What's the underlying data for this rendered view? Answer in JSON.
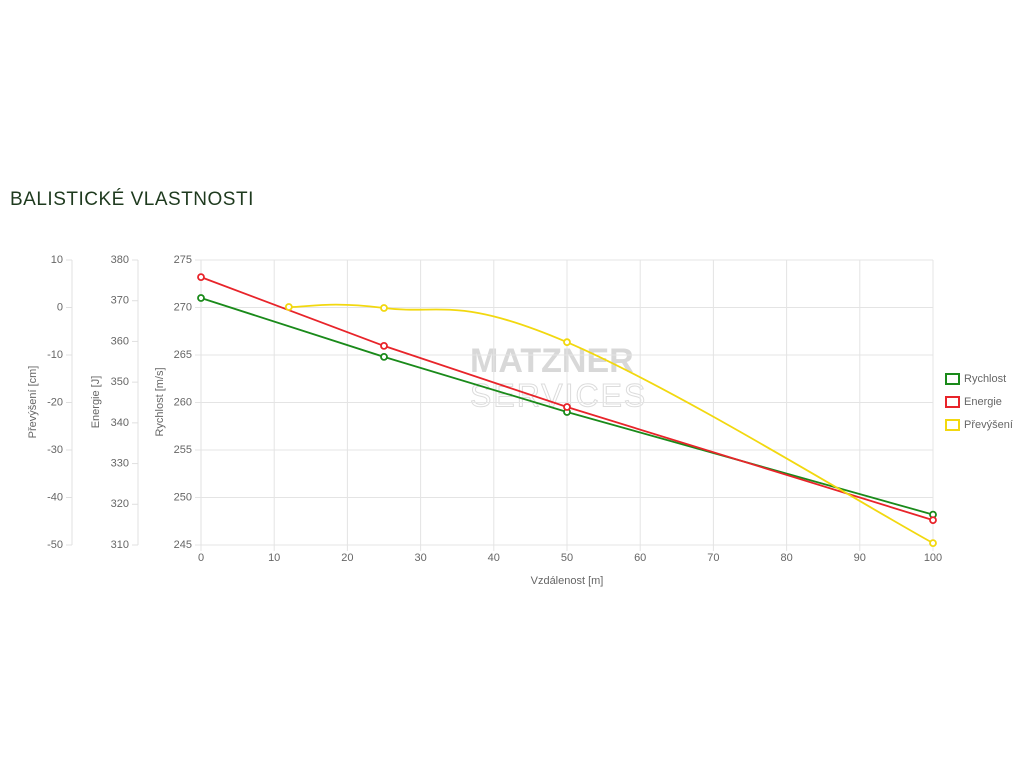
{
  "chart_data": {
    "type": "line",
    "title": "BALISTICKÉ VLASTNOSTI",
    "watermark": [
      "MATZNER",
      "SERVICES"
    ],
    "x_label": "Vzdálenost [m]",
    "y_label": "Rychlost [m/s]",
    "y2_label": "Energie [J]",
    "y3_label": "Převýšení [cm]",
    "xlim": [
      0,
      100
    ],
    "xticks": [
      0,
      10,
      20,
      30,
      40,
      50,
      60,
      70,
      80,
      90,
      100
    ],
    "ylim": [
      245,
      275
    ],
    "yticks": [
      245,
      250,
      255,
      260,
      265,
      270,
      275
    ],
    "y2lim": [
      310,
      380
    ],
    "y2ticks": [
      310,
      320,
      330,
      340,
      350,
      360,
      370,
      380
    ],
    "y3lim": [
      -50,
      10
    ],
    "y3ticks": [
      -50,
      -40,
      -30,
      -20,
      -10,
      0,
      10
    ],
    "grid": true,
    "legend": "right",
    "series": [
      {
        "name": "Rychlost",
        "color": "#1a8a1a",
        "axis": "y",
        "x": [
          0,
          25,
          50,
          100
        ],
        "values": [
          271.0,
          264.8,
          259.0,
          248.2
        ]
      },
      {
        "name": "Energie",
        "color": "#e8242a",
        "axis": "y2",
        "x": [
          0,
          25,
          50,
          100
        ],
        "values": [
          375.8,
          358.9,
          343.9,
          316.1
        ]
      },
      {
        "name": "Převýšení",
        "color": "#f2d80f",
        "axis": "y3",
        "x": [
          12,
          25,
          50,
          100
        ],
        "values": [
          0.1,
          -0.1,
          -7.3,
          -49.6
        ],
        "smooth": true
      }
    ]
  }
}
